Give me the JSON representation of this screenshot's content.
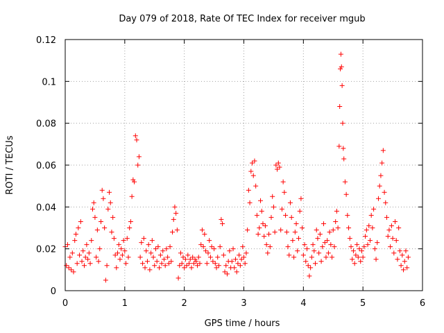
{
  "chart_data": {
    "type": "scatter",
    "title": "Day 079 of 2018, Rate Of TEC Index for receiver mgub",
    "xlabel": "GPS time / hours",
    "ylabel": "ROTI / TECUs",
    "xlim": [
      0,
      6
    ],
    "ylim": [
      0,
      0.12
    ],
    "x_ticks": [
      0,
      1,
      2,
      3,
      4,
      5,
      6
    ],
    "x_tick_labels": [
      "0",
      "1",
      "2",
      "3",
      "4",
      "5",
      "6"
    ],
    "y_ticks": [
      0,
      0.02,
      0.04,
      0.06,
      0.08,
      0.1,
      0.12
    ],
    "y_tick_labels": [
      "0",
      "0.02",
      "0.04",
      "0.06",
      "0.08",
      "0.1",
      "0.12"
    ],
    "grid": true,
    "marker": "+",
    "color": "#ff0000",
    "series": [
      {
        "name": "ROTI",
        "points": [
          [
            0.0,
            0.021
          ],
          [
            0.02,
            0.012
          ],
          [
            0.04,
            0.022
          ],
          [
            0.06,
            0.011
          ],
          [
            0.08,
            0.016
          ],
          [
            0.1,
            0.01
          ],
          [
            0.12,
            0.018
          ],
          [
            0.14,
            0.009
          ],
          [
            0.16,
            0.024
          ],
          [
            0.18,
            0.027
          ],
          [
            0.2,
            0.013
          ],
          [
            0.22,
            0.03
          ],
          [
            0.24,
            0.017
          ],
          [
            0.26,
            0.033
          ],
          [
            0.28,
            0.014
          ],
          [
            0.3,
            0.019
          ],
          [
            0.32,
            0.012
          ],
          [
            0.34,
            0.016
          ],
          [
            0.36,
            0.022
          ],
          [
            0.38,
            0.015
          ],
          [
            0.4,
            0.018
          ],
          [
            0.42,
            0.013
          ],
          [
            0.44,
            0.024
          ],
          [
            0.46,
            0.039
          ],
          [
            0.48,
            0.042
          ],
          [
            0.5,
            0.035
          ],
          [
            0.52,
            0.016
          ],
          [
            0.54,
            0.029
          ],
          [
            0.56,
            0.014
          ],
          [
            0.58,
            0.02
          ],
          [
            0.6,
            0.033
          ],
          [
            0.62,
            0.048
          ],
          [
            0.64,
            0.044
          ],
          [
            0.66,
            0.03
          ],
          [
            0.68,
            0.005
          ],
          [
            0.7,
            0.012
          ],
          [
            0.72,
            0.039
          ],
          [
            0.74,
            0.047
          ],
          [
            0.76,
            0.042
          ],
          [
            0.78,
            0.028
          ],
          [
            0.8,
            0.035
          ],
          [
            0.82,
            0.025
          ],
          [
            0.84,
            0.017
          ],
          [
            0.86,
            0.011
          ],
          [
            0.88,
            0.018
          ],
          [
            0.9,
            0.022
          ],
          [
            0.92,
            0.015
          ],
          [
            0.94,
            0.02
          ],
          [
            0.96,
            0.017
          ],
          [
            0.98,
            0.024
          ],
          [
            1.0,
            0.019
          ],
          [
            1.02,
            0.013
          ],
          [
            1.04,
            0.025
          ],
          [
            1.06,
            0.016
          ],
          [
            1.08,
            0.03
          ],
          [
            1.1,
            0.033
          ],
          [
            1.12,
            0.045
          ],
          [
            1.14,
            0.053
          ],
          [
            1.16,
            0.052
          ],
          [
            1.18,
            0.074
          ],
          [
            1.2,
            0.072
          ],
          [
            1.22,
            0.06
          ],
          [
            1.24,
            0.064
          ],
          [
            1.26,
            0.016
          ],
          [
            1.28,
            0.023
          ],
          [
            1.3,
            0.013
          ],
          [
            1.32,
            0.025
          ],
          [
            1.34,
            0.011
          ],
          [
            1.36,
            0.019
          ],
          [
            1.38,
            0.014
          ],
          [
            1.4,
            0.022
          ],
          [
            1.42,
            0.01
          ],
          [
            1.44,
            0.018
          ],
          [
            1.46,
            0.024
          ],
          [
            1.48,
            0.016
          ],
          [
            1.5,
            0.012
          ],
          [
            1.52,
            0.02
          ],
          [
            1.54,
            0.014
          ],
          [
            1.56,
            0.021
          ],
          [
            1.58,
            0.011
          ],
          [
            1.6,
            0.017
          ],
          [
            1.62,
            0.013
          ],
          [
            1.64,
            0.019
          ],
          [
            1.66,
            0.015
          ],
          [
            1.68,
            0.012
          ],
          [
            1.7,
            0.02
          ],
          [
            1.72,
            0.016
          ],
          [
            1.74,
            0.013
          ],
          [
            1.76,
            0.021
          ],
          [
            1.78,
            0.014
          ],
          [
            1.8,
            0.028
          ],
          [
            1.82,
            0.034
          ],
          [
            1.84,
            0.04
          ],
          [
            1.86,
            0.037
          ],
          [
            1.88,
            0.029
          ],
          [
            1.9,
            0.006
          ],
          [
            1.92,
            0.012
          ],
          [
            1.94,
            0.018
          ],
          [
            1.96,
            0.013
          ],
          [
            1.98,
            0.016
          ],
          [
            2.0,
            0.011
          ],
          [
            2.02,
            0.015
          ],
          [
            2.04,
            0.012
          ],
          [
            2.06,
            0.017
          ],
          [
            2.08,
            0.013
          ],
          [
            2.1,
            0.015
          ],
          [
            2.12,
            0.011
          ],
          [
            2.14,
            0.016
          ],
          [
            2.16,
            0.013
          ],
          [
            2.18,
            0.015
          ],
          [
            2.2,
            0.014
          ],
          [
            2.22,
            0.012
          ],
          [
            2.24,
            0.016
          ],
          [
            2.26,
            0.013
          ],
          [
            2.28,
            0.022
          ],
          [
            2.3,
            0.029
          ],
          [
            2.32,
            0.021
          ],
          [
            2.34,
            0.027
          ],
          [
            2.36,
            0.019
          ],
          [
            2.38,
            0.013
          ],
          [
            2.4,
            0.018
          ],
          [
            2.42,
            0.024
          ],
          [
            2.44,
            0.016
          ],
          [
            2.46,
            0.021
          ],
          [
            2.48,
            0.014
          ],
          [
            2.5,
            0.02
          ],
          [
            2.52,
            0.013
          ],
          [
            2.54,
            0.011
          ],
          [
            2.56,
            0.016
          ],
          [
            2.58,
            0.012
          ],
          [
            2.6,
            0.021
          ],
          [
            2.62,
            0.034
          ],
          [
            2.64,
            0.032
          ],
          [
            2.66,
            0.017
          ],
          [
            2.68,
            0.009
          ],
          [
            2.7,
            0.012
          ],
          [
            2.72,
            0.008
          ],
          [
            2.74,
            0.014
          ],
          [
            2.76,
            0.019
          ],
          [
            2.78,
            0.011
          ],
          [
            2.8,
            0.014
          ],
          [
            2.82,
            0.02
          ],
          [
            2.84,
            0.011
          ],
          [
            2.86,
            0.015
          ],
          [
            2.88,
            0.009
          ],
          [
            2.9,
            0.013
          ],
          [
            2.92,
            0.017
          ],
          [
            2.94,
            0.012
          ],
          [
            2.96,
            0.015
          ],
          [
            2.98,
            0.021
          ],
          [
            3.0,
            0.016
          ],
          [
            3.02,
            0.013
          ],
          [
            3.04,
            0.018
          ],
          [
            3.06,
            0.029
          ],
          [
            3.08,
            0.048
          ],
          [
            3.1,
            0.042
          ],
          [
            3.12,
            0.057
          ],
          [
            3.14,
            0.061
          ],
          [
            3.16,
            0.055
          ],
          [
            3.18,
            0.062
          ],
          [
            3.2,
            0.05
          ],
          [
            3.22,
            0.036
          ],
          [
            3.24,
            0.027
          ],
          [
            3.26,
            0.03
          ],
          [
            3.28,
            0.043
          ],
          [
            3.3,
            0.038
          ],
          [
            3.32,
            0.032
          ],
          [
            3.34,
            0.026
          ],
          [
            3.36,
            0.031
          ],
          [
            3.38,
            0.022
          ],
          [
            3.4,
            0.018
          ],
          [
            3.42,
            0.027
          ],
          [
            3.44,
            0.021
          ],
          [
            3.46,
            0.035
          ],
          [
            3.48,
            0.045
          ],
          [
            3.5,
            0.04
          ],
          [
            3.52,
            0.028
          ],
          [
            3.54,
            0.06
          ],
          [
            3.56,
            0.058
          ],
          [
            3.58,
            0.061
          ],
          [
            3.6,
            0.059
          ],
          [
            3.62,
            0.029
          ],
          [
            3.64,
            0.039
          ],
          [
            3.66,
            0.052
          ],
          [
            3.68,
            0.047
          ],
          [
            3.7,
            0.036
          ],
          [
            3.72,
            0.028
          ],
          [
            3.74,
            0.021
          ],
          [
            3.76,
            0.017
          ],
          [
            3.78,
            0.042
          ],
          [
            3.8,
            0.035
          ],
          [
            3.82,
            0.024
          ],
          [
            3.84,
            0.016
          ],
          [
            3.86,
            0.028
          ],
          [
            3.88,
            0.032
          ],
          [
            3.9,
            0.019
          ],
          [
            3.92,
            0.025
          ],
          [
            3.94,
            0.038
          ],
          [
            3.96,
            0.044
          ],
          [
            3.98,
            0.03
          ],
          [
            4.0,
            0.017
          ],
          [
            4.02,
            0.022
          ],
          [
            4.04,
            0.014
          ],
          [
            4.06,
            0.02
          ],
          [
            4.08,
            0.012
          ],
          [
            4.1,
            0.007
          ],
          [
            4.12,
            0.011
          ],
          [
            4.14,
            0.016
          ],
          [
            4.16,
            0.022
          ],
          [
            4.18,
            0.019
          ],
          [
            4.2,
            0.013
          ],
          [
            4.22,
            0.029
          ],
          [
            4.24,
            0.025
          ],
          [
            4.26,
            0.018
          ],
          [
            4.28,
            0.027
          ],
          [
            4.3,
            0.014
          ],
          [
            4.32,
            0.021
          ],
          [
            4.34,
            0.032
          ],
          [
            4.36,
            0.023
          ],
          [
            4.38,
            0.016
          ],
          [
            4.4,
            0.024
          ],
          [
            4.42,
            0.018
          ],
          [
            4.44,
            0.028
          ],
          [
            4.46,
            0.022
          ],
          [
            4.48,
            0.016
          ],
          [
            4.5,
            0.029
          ],
          [
            4.52,
            0.021
          ],
          [
            4.54,
            0.033
          ],
          [
            4.56,
            0.038
          ],
          [
            4.58,
            0.03
          ],
          [
            4.6,
            0.069
          ],
          [
            4.61,
            0.088
          ],
          [
            4.62,
            0.106
          ],
          [
            4.63,
            0.113
          ],
          [
            4.64,
            0.107
          ],
          [
            4.65,
            0.098
          ],
          [
            4.66,
            0.08
          ],
          [
            4.67,
            0.068
          ],
          [
            4.68,
            0.063
          ],
          [
            4.7,
            0.052
          ],
          [
            4.72,
            0.046
          ],
          [
            4.74,
            0.036
          ],
          [
            4.76,
            0.03
          ],
          [
            4.78,
            0.025
          ],
          [
            4.8,
            0.021
          ],
          [
            4.82,
            0.015
          ],
          [
            4.84,
            0.019
          ],
          [
            4.86,
            0.013
          ],
          [
            4.88,
            0.017
          ],
          [
            4.9,
            0.022
          ],
          [
            4.92,
            0.016
          ],
          [
            4.94,
            0.02
          ],
          [
            4.96,
            0.014
          ],
          [
            4.98,
            0.019
          ],
          [
            5.0,
            0.016
          ],
          [
            5.02,
            0.021
          ],
          [
            5.04,
            0.026
          ],
          [
            5.06,
            0.029
          ],
          [
            5.08,
            0.022
          ],
          [
            5.1,
            0.031
          ],
          [
            5.12,
            0.024
          ],
          [
            5.14,
            0.036
          ],
          [
            5.16,
            0.03
          ],
          [
            5.18,
            0.039
          ],
          [
            5.2,
            0.02
          ],
          [
            5.22,
            0.015
          ],
          [
            5.24,
            0.023
          ],
          [
            5.26,
            0.044
          ],
          [
            5.28,
            0.05
          ],
          [
            5.3,
            0.055
          ],
          [
            5.32,
            0.061
          ],
          [
            5.34,
            0.067
          ],
          [
            5.36,
            0.047
          ],
          [
            5.38,
            0.042
          ],
          [
            5.4,
            0.035
          ],
          [
            5.42,
            0.026
          ],
          [
            5.44,
            0.029
          ],
          [
            5.46,
            0.021
          ],
          [
            5.48,
            0.031
          ],
          [
            5.5,
            0.025
          ],
          [
            5.52,
            0.018
          ],
          [
            5.54,
            0.033
          ],
          [
            5.56,
            0.024
          ],
          [
            5.58,
            0.015
          ],
          [
            5.6,
            0.03
          ],
          [
            5.62,
            0.019
          ],
          [
            5.64,
            0.012
          ],
          [
            5.66,
            0.017
          ],
          [
            5.68,
            0.01
          ],
          [
            5.7,
            0.014
          ],
          [
            5.72,
            0.019
          ],
          [
            5.74,
            0.011
          ],
          [
            5.76,
            0.016
          ]
        ]
      }
    ]
  }
}
